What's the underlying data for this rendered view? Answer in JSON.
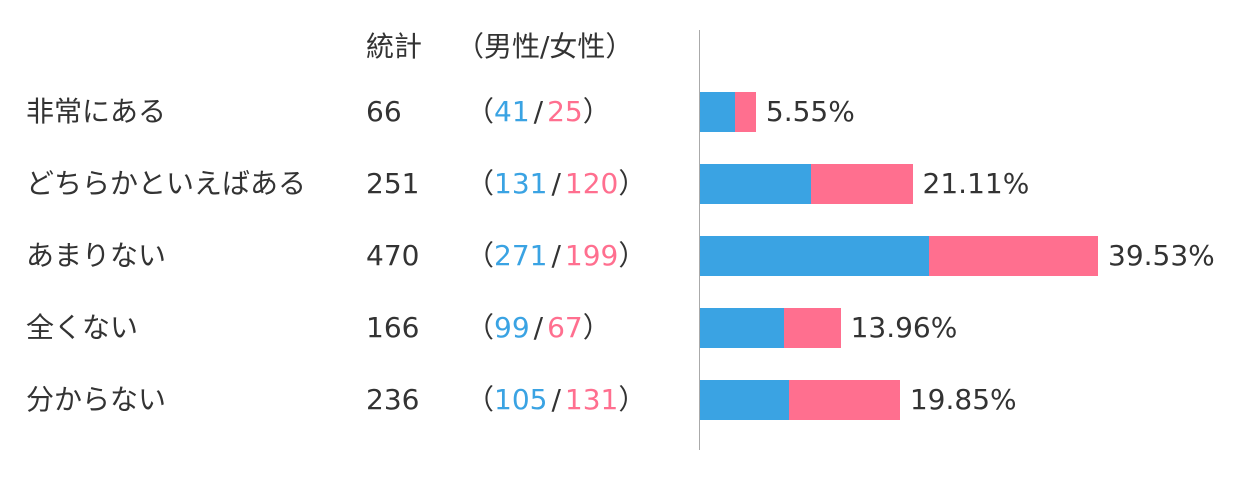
{
  "chart_data": {
    "type": "bar",
    "orientation": "horizontal",
    "stacked": true,
    "headers": {
      "total": "統計",
      "split": "（男性/女性）"
    },
    "categories": [
      "非常にある",
      "どちらかといえばある",
      "あまりない",
      "全くない",
      "分からない"
    ],
    "totals": [
      66,
      251,
      470,
      166,
      236
    ],
    "series": [
      {
        "values": [
          41,
          131,
          271,
          99,
          105
        ],
        "color": "#3aa3e3"
      },
      {
        "values": [
          25,
          120,
          199,
          67,
          131
        ],
        "color": "#ff6f8f"
      }
    ],
    "percent_labels": [
      "5.55%",
      "21.11%",
      "39.53%",
      "13.96%",
      "19.85%"
    ],
    "xlim": [
      0,
      470
    ],
    "grid": false,
    "legend": "none"
  }
}
